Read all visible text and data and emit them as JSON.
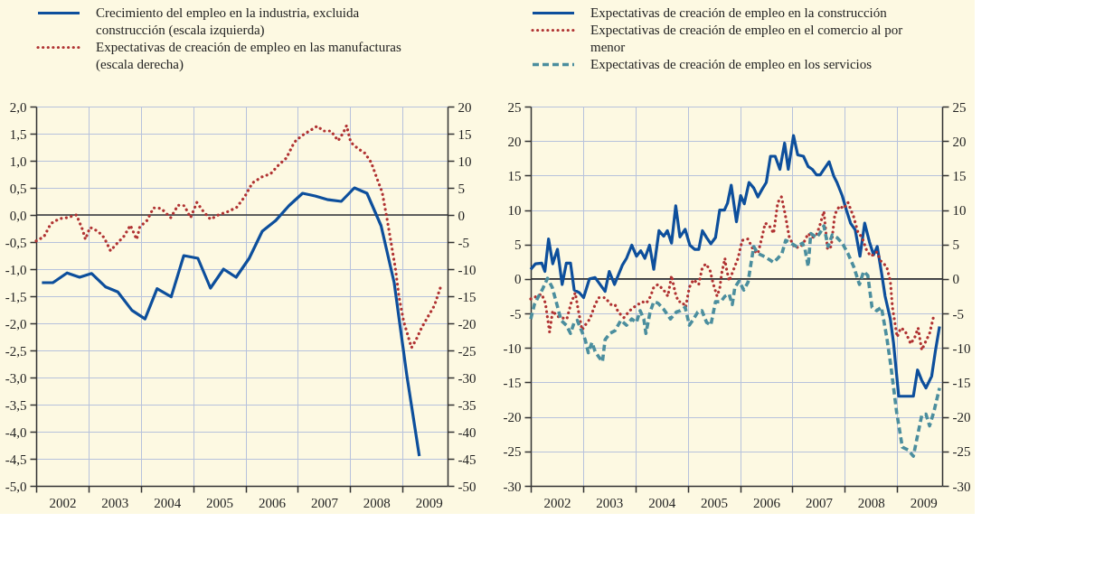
{
  "chart_data": [
    {
      "type": "line",
      "legend": "top",
      "grid": true,
      "xlim": [
        2002,
        2009.86
      ],
      "xticks": [
        {
          "value": 2002,
          "label": null
        },
        {
          "value": 2002.5,
          "label": "2002"
        },
        {
          "value": 2003,
          "label": null
        },
        {
          "value": 2003.5,
          "label": "2003"
        },
        {
          "value": 2004,
          "label": null
        },
        {
          "value": 2004.5,
          "label": "2004"
        },
        {
          "value": 2005,
          "label": null
        },
        {
          "value": 2005.5,
          "label": "2005"
        },
        {
          "value": 2006,
          "label": null
        },
        {
          "value": 2006.5,
          "label": "2006"
        },
        {
          "value": 2007,
          "label": null
        },
        {
          "value": 2007.5,
          "label": "2007"
        },
        {
          "value": 2008,
          "label": null
        },
        {
          "value": 2008.5,
          "label": "2008"
        },
        {
          "value": 2009,
          "label": null
        },
        {
          "value": 2009.5,
          "label": "2009"
        }
      ],
      "ylim": [
        -5,
        2
      ],
      "yticks": [
        {
          "value": -5,
          "label": "-5,0"
        },
        {
          "value": -4.5,
          "label": "-4,5"
        },
        {
          "value": -4,
          "label": "-4,0"
        },
        {
          "value": -3.5,
          "label": "-3,5"
        },
        {
          "value": -3,
          "label": "-3,0"
        },
        {
          "value": -2.5,
          "label": "-2,5"
        },
        {
          "value": -2,
          "label": "-2,0"
        },
        {
          "value": -1.5,
          "label": "-1,5"
        },
        {
          "value": -1,
          "label": "-1,0"
        },
        {
          "value": -0.5,
          "label": "-0,5"
        },
        {
          "value": 0,
          "label": "0,0"
        },
        {
          "value": 0.5,
          "label": "0,5"
        },
        {
          "value": 1,
          "label": "1,0"
        },
        {
          "value": 1.5,
          "label": "1,5"
        },
        {
          "value": 2,
          "label": "2,0"
        }
      ],
      "y2lim": [
        -50,
        20
      ],
      "y2ticks": [
        -50,
        -45,
        -40,
        -35,
        -30,
        -25,
        -20,
        -15,
        -10,
        -5,
        0,
        5,
        10,
        15,
        20
      ],
      "ref_lines": [
        {
          "axis": "y",
          "value": 0,
          "color": "#333333"
        }
      ],
      "series": [
        {
          "name": "Crecimiento del empleo en la industria, excluida construcción (escala izquierda)",
          "color": "#0d4f9c",
          "line_style": "solid",
          "x": [
            2002.11,
            2002.32,
            2002.59,
            2002.83,
            2003.06,
            2003.33,
            2003.56,
            2003.83,
            2004.08,
            2004.31,
            2004.58,
            2004.82,
            2005.09,
            2005.33,
            2005.58,
            2005.82,
            2006.07,
            2006.32,
            2006.57,
            2006.83,
            2007.09,
            2007.33,
            2007.58,
            2007.83,
            2008.08,
            2008.32,
            2008.59,
            2008.84,
            2009.08,
            2009.32
          ],
          "values": [
            -1.25,
            -1.25,
            -1.07,
            -1.15,
            -1.08,
            -1.33,
            -1.42,
            -1.76,
            -1.92,
            -1.36,
            -1.51,
            -0.75,
            -0.8,
            -1.35,
            -1.0,
            -1.15,
            -0.8,
            -0.3,
            -0.11,
            0.17,
            0.4,
            0.35,
            0.28,
            0.25,
            0.5,
            0.4,
            -0.2,
            -1.25,
            -2.95,
            -4.45
          ]
        },
        {
          "name": "Expectativas de creación de empleo en las manufacturas (escala derecha)",
          "color": "#b03232",
          "line_style": "dotted",
          "axis": "y2",
          "x": [
            2002.0,
            2002.15,
            2002.28,
            2002.44,
            2002.59,
            2002.77,
            2002.89,
            2002.94,
            2003.03,
            2003.18,
            2003.3,
            2003.42,
            2003.53,
            2003.68,
            2003.8,
            2003.92,
            2003.98,
            2004.12,
            2004.24,
            2004.39,
            2004.57,
            2004.71,
            2004.83,
            2004.95,
            2005.07,
            2005.19,
            2005.33,
            2005.48,
            2005.66,
            2005.83,
            2005.98,
            2006.13,
            2006.31,
            2006.48,
            2006.63,
            2006.78,
            2006.93,
            2007.07,
            2007.22,
            2007.37,
            2007.49,
            2007.63,
            2007.77,
            2007.87,
            2007.93,
            2008.01,
            2008.14,
            2008.28,
            2008.4,
            2008.52,
            2008.61,
            2008.7,
            2008.78,
            2008.87,
            2008.93,
            2009.02,
            2009.11,
            2009.17,
            2009.26,
            2009.37,
            2009.49,
            2009.61,
            2009.73
          ],
          "values": [
            -4.8,
            -4,
            -1.6,
            -0.7,
            -0.5,
            0,
            -2.8,
            -4.5,
            -2.3,
            -3,
            -4.2,
            -6.6,
            -5.4,
            -3.9,
            -1.9,
            -4.5,
            -2.2,
            -1,
            1.3,
            1.2,
            -0.5,
            1.8,
            1.7,
            -0.5,
            2.3,
            0.7,
            -0.8,
            0,
            0.6,
            1.4,
            3.3,
            5.9,
            7,
            7.6,
            9.2,
            10.5,
            13.4,
            14.6,
            15.5,
            16.4,
            15.5,
            15.5,
            13.7,
            15.2,
            16.5,
            13.4,
            12.3,
            11.4,
            9.7,
            6.5,
            4.2,
            -0.5,
            -5.1,
            -10.3,
            -15,
            -19.6,
            -22.5,
            -24.5,
            -23,
            -20.7,
            -18.7,
            -16.7,
            -13.2
          ]
        }
      ]
    },
    {
      "type": "line",
      "legend": "top",
      "grid": true,
      "xlim": [
        2002,
        2009.86
      ],
      "xticks": [
        {
          "value": 2002,
          "label": null
        },
        {
          "value": 2002.5,
          "label": "2002"
        },
        {
          "value": 2003,
          "label": null
        },
        {
          "value": 2003.5,
          "label": "2003"
        },
        {
          "value": 2004,
          "label": null
        },
        {
          "value": 2004.5,
          "label": "2004"
        },
        {
          "value": 2005,
          "label": null
        },
        {
          "value": 2005.5,
          "label": "2005"
        },
        {
          "value": 2006,
          "label": null
        },
        {
          "value": 2006.5,
          "label": "2006"
        },
        {
          "value": 2007,
          "label": null
        },
        {
          "value": 2007.5,
          "label": "2007"
        },
        {
          "value": 2008,
          "label": null
        },
        {
          "value": 2008.5,
          "label": "2008"
        },
        {
          "value": 2009,
          "label": null
        },
        {
          "value": 2009.5,
          "label": "2009"
        }
      ],
      "ylim": [
        -30,
        25
      ],
      "yticks": [
        -30,
        -25,
        -20,
        -15,
        -10,
        -5,
        0,
        5,
        10,
        15,
        20,
        25
      ],
      "y2lim": [
        -30,
        25
      ],
      "y2ticks": [
        -30,
        -25,
        -20,
        -15,
        -10,
        -5,
        0,
        5,
        10,
        15,
        20,
        25
      ],
      "ref_lines": [
        {
          "axis": "y",
          "value": 0,
          "color": "#333333"
        }
      ],
      "series": [
        {
          "name": "Expectativas de creación de empleo en la construcción",
          "color": "#0d4f9c",
          "line_style": "solid",
          "x": [
            2002.0,
            2002.09,
            2002.21,
            2002.27,
            2002.34,
            2002.42,
            2002.51,
            2002.6,
            2002.68,
            2002.76,
            2002.83,
            2002.93,
            2003.01,
            2003.12,
            2003.23,
            2003.42,
            2003.5,
            2003.6,
            2003.75,
            2003.83,
            2003.93,
            2004.02,
            2004.1,
            2004.18,
            2004.27,
            2004.35,
            2004.45,
            2004.54,
            2004.61,
            2004.69,
            2004.77,
            2004.85,
            2004.95,
            2005.04,
            2005.13,
            2005.21,
            2005.28,
            2005.36,
            2005.44,
            2005.53,
            2005.61,
            2005.7,
            2005.76,
            2005.83,
            2005.93,
            2006.01,
            2006.08,
            2006.17,
            2006.26,
            2006.34,
            2006.42,
            2006.5,
            2006.58,
            2006.67,
            2006.76,
            2006.85,
            2006.92,
            2007.02,
            2007.1,
            2007.21,
            2007.3,
            2007.38,
            2007.46,
            2007.53,
            2007.62,
            2007.7,
            2007.79,
            2007.85,
            2007.95,
            2008.03,
            2008.11,
            2008.2,
            2008.29,
            2008.38,
            2008.47,
            2008.55,
            2008.62,
            2008.71,
            2008.77,
            2008.87,
            2008.93,
            2009.03,
            2009.13,
            2009.21,
            2009.31,
            2009.39,
            2009.47,
            2009.55,
            2009.66,
            2009.73,
            2009.81
          ],
          "values": [
            1.4,
            2.2,
            2.3,
            1.1,
            5.8,
            2.2,
            4.3,
            -0.8,
            2.3,
            2.3,
            -1.6,
            -2,
            -2.7,
            0,
            0.2,
            -1.8,
            1.1,
            -0.8,
            2,
            3,
            4.9,
            3.3,
            4.1,
            3,
            4.9,
            1.4,
            7,
            6.2,
            7,
            5.2,
            10.6,
            6.1,
            7.2,
            4.9,
            4.3,
            4.3,
            7,
            6,
            5.1,
            6,
            10,
            10,
            11,
            13.6,
            8.3,
            12.1,
            10.9,
            14,
            13.2,
            11.9,
            13,
            14,
            17.8,
            17.8,
            15.9,
            19.7,
            15.9,
            20.8,
            18,
            17.8,
            16.3,
            15.9,
            15.1,
            15.1,
            16.1,
            17,
            14.9,
            14,
            12.1,
            10,
            8.1,
            7.1,
            3.3,
            8.1,
            5.4,
            3.5,
            4.7,
            0.5,
            -2.5,
            -5.8,
            -9.2,
            -17,
            -17,
            -17,
            -17,
            -13.2,
            -14.7,
            -15.8,
            -14.1,
            -10.5,
            -6.9
          ]
        },
        {
          "name": "Expectativas de creación de empleo en el comercio al por menor",
          "color": "#b03232",
          "line_style": "dotted",
          "x": [
            2002.0,
            2002.12,
            2002.21,
            2002.28,
            2002.34,
            2002.36,
            2002.42,
            2002.5,
            2002.58,
            2002.69,
            2002.77,
            2002.85,
            2002.91,
            2002.98,
            2003.04,
            2003.13,
            2003.23,
            2003.3,
            2003.42,
            2003.53,
            2003.61,
            2003.67,
            2003.78,
            2003.89,
            2003.97,
            2004.05,
            2004.13,
            2004.21,
            2004.29,
            2004.35,
            2004.43,
            2004.54,
            2004.62,
            2004.69,
            2004.76,
            2004.82,
            2004.89,
            2004.96,
            2005.03,
            2005.11,
            2005.21,
            2005.27,
            2005.34,
            2005.42,
            2005.49,
            2005.56,
            2005.61,
            2005.65,
            2005.71,
            2005.73,
            2005.79,
            2005.96,
            2006.04,
            2006.15,
            2006.26,
            2006.34,
            2006.41,
            2006.48,
            2006.56,
            2006.64,
            2006.72,
            2006.79,
            2006.86,
            2006.94,
            2007.05,
            2007.16,
            2007.24,
            2007.3,
            2007.38,
            2007.46,
            2007.52,
            2007.6,
            2007.67,
            2007.74,
            2007.81,
            2007.9,
            2007.98,
            2008.06,
            2008.17,
            2008.25,
            2008.33,
            2008.42,
            2008.5,
            2008.61,
            2008.69,
            2008.8,
            2008.87,
            2008.91,
            2009.0,
            2009.07,
            2009.15,
            2009.26,
            2009.34,
            2009.4,
            2009.47,
            2009.55,
            2009.62,
            2009.71
          ],
          "values": [
            -2.9,
            -2.5,
            -2.2,
            -3.5,
            -6.7,
            -7.7,
            -4.6,
            -5.4,
            -5.6,
            -5.8,
            -3.5,
            -2,
            -4.6,
            -7.4,
            -6.7,
            -5.8,
            -3.7,
            -2.7,
            -2.7,
            -3.7,
            -3.7,
            -4.8,
            -5.6,
            -4.6,
            -4.1,
            -3.7,
            -3.3,
            -3.5,
            -2.5,
            -1.2,
            -0.8,
            -1.6,
            -2.5,
            0.5,
            -2,
            -3.3,
            -3.3,
            -4.1,
            -1.2,
            -0.1,
            -0.8,
            1.4,
            2.2,
            1.4,
            -0.8,
            -2.5,
            -1.4,
            0.9,
            3,
            1.8,
            -0.3,
            3,
            5.6,
            5.8,
            4.1,
            3.7,
            5.8,
            8.1,
            7.7,
            6.6,
            11.1,
            11.9,
            9.4,
            6,
            4.5,
            4.7,
            5.6,
            6.6,
            6,
            6.4,
            7.7,
            9.8,
            4.3,
            4.7,
            9.4,
            10.6,
            10.2,
            11.1,
            9,
            6.8,
            6,
            4.1,
            3.3,
            3.9,
            2.6,
            1.8,
            -0.3,
            -4.1,
            -8.4,
            -7.1,
            -7.5,
            -9.4,
            -8.4,
            -7.1,
            -10.3,
            -9,
            -7.9,
            -5
          ]
        },
        {
          "name": "Expectativas de creación de empleo en los servicios",
          "color": "#4b8e9e",
          "line_style": "dashed",
          "x": [
            2002.0,
            2002.07,
            2002.15,
            2002.23,
            2002.32,
            2002.41,
            2002.5,
            2002.58,
            2002.68,
            2002.76,
            2002.83,
            2002.89,
            2002.97,
            2003.04,
            2003.1,
            2003.17,
            2003.23,
            2003.3,
            2003.37,
            2003.42,
            2003.51,
            2003.61,
            2003.72,
            2003.83,
            2003.93,
            2004.02,
            2004.09,
            2004.16,
            2004.2,
            2004.28,
            2004.35,
            2004.43,
            2004.54,
            2004.67,
            2004.78,
            2004.86,
            2004.95,
            2005.03,
            2005.11,
            2005.19,
            2005.27,
            2005.36,
            2005.44,
            2005.53,
            2005.63,
            2005.71,
            2005.79,
            2005.85,
            2005.9,
            2005.98,
            2006.07,
            2006.15,
            2006.26,
            2006.34,
            2006.45,
            2006.56,
            2006.64,
            2006.72,
            2006.8,
            2006.87,
            2006.97,
            2007.08,
            2007.19,
            2007.24,
            2007.3,
            2007.35,
            2007.46,
            2007.52,
            2007.6,
            2007.68,
            2007.76,
            2007.85,
            2007.95,
            2008.06,
            2008.17,
            2008.28,
            2008.36,
            2008.44,
            2008.52,
            2008.61,
            2008.7,
            2008.8,
            2008.88,
            2008.99,
            2009.1,
            2009.21,
            2009.31,
            2009.39,
            2009.47,
            2009.55,
            2009.62,
            2009.7,
            2009.81
          ],
          "values": [
            -5.8,
            -3.7,
            -2.5,
            -1.4,
            0.1,
            -1.2,
            -3.7,
            -6,
            -6.7,
            -7.9,
            -6.3,
            -6,
            -7.5,
            -8.8,
            -10.7,
            -9.2,
            -10.5,
            -11.3,
            -12,
            -8.8,
            -7.9,
            -7.5,
            -6,
            -6.7,
            -5.8,
            -6.3,
            -4.6,
            -5.8,
            -7.9,
            -4.8,
            -3.3,
            -3.5,
            -4.4,
            -5.8,
            -4.8,
            -4.6,
            -4.1,
            -6.7,
            -5.8,
            -4.8,
            -4.6,
            -6.3,
            -6.7,
            -3.3,
            -3.3,
            -2.5,
            -2.2,
            -3.7,
            -1.2,
            -0.3,
            -1.6,
            -0.5,
            4.7,
            3.7,
            3.3,
            2.8,
            2.4,
            3,
            3.7,
            5.6,
            5.2,
            4.7,
            5.2,
            4.3,
            1.8,
            6.6,
            6,
            6.6,
            7.7,
            4.7,
            6.4,
            6,
            5.2,
            3.7,
            1.8,
            -0.8,
            1.1,
            0.5,
            -4.1,
            -4.6,
            -4.1,
            -8.4,
            -12.6,
            -19.3,
            -24.4,
            -24.8,
            -25.7,
            -22.7,
            -19.8,
            -19.6,
            -21.3,
            -19.3,
            -15.8
          ]
        }
      ]
    }
  ]
}
